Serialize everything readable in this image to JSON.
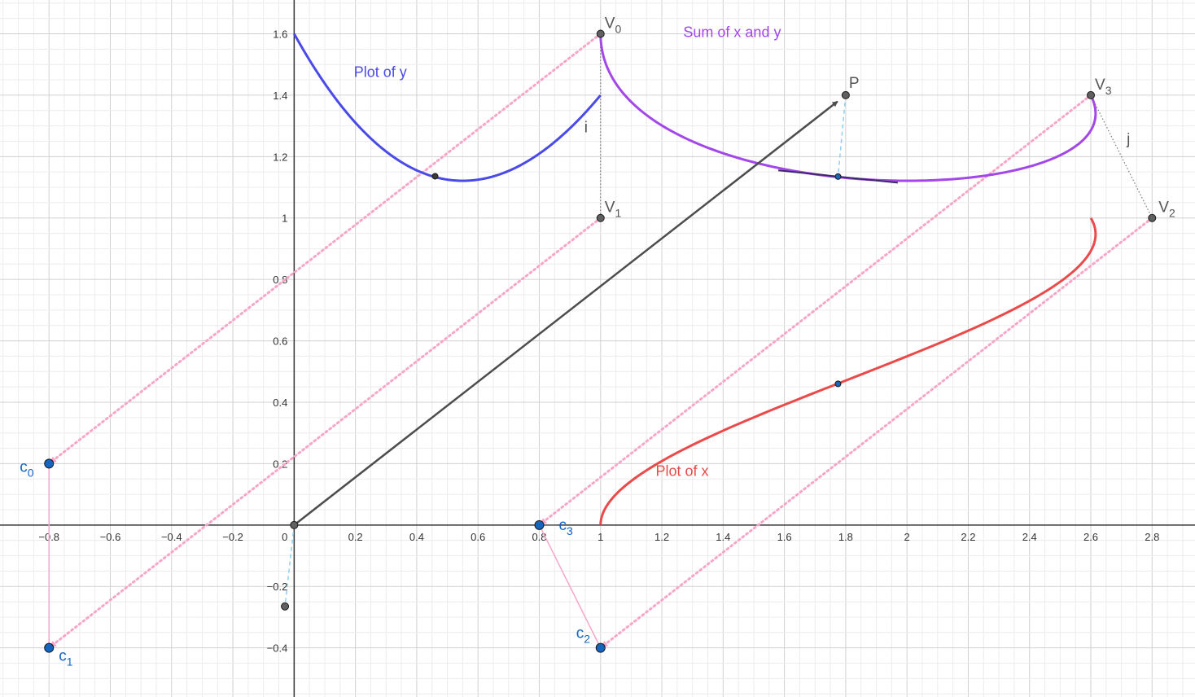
{
  "chart_data": {
    "type": "scatter",
    "xlim": [
      -0.96,
      2.94
    ],
    "ylim": [
      -0.56,
      1.71
    ],
    "grid": true,
    "minor_grid": true,
    "x_ticks": [
      -0.8,
      -0.6,
      -0.4,
      -0.2,
      0,
      0.2,
      0.4,
      0.6,
      0.8,
      1,
      1.2,
      1.4,
      1.6,
      1.8,
      2,
      2.2,
      2.4,
      2.6,
      2.8
    ],
    "y_ticks": [
      -0.4,
      -0.2,
      0.2,
      0.4,
      0.6,
      0.8,
      1,
      1.2,
      1.4,
      1.6
    ],
    "x_tick_labels": [
      "−0.8",
      "−0.6",
      "−0.4",
      "−0.2",
      "0",
      "0.2",
      "0.4",
      "0.6",
      "0.8",
      "1",
      "1.2",
      "1.4",
      "1.6",
      "1.8",
      "2",
      "2.2",
      "2.4",
      "2.6",
      "2.8"
    ],
    "y_tick_labels": [
      "−0.4",
      "−0.2",
      "0.2",
      "0.4",
      "0.6",
      "0.8",
      "1",
      "1.2",
      "1.4",
      "1.6"
    ],
    "control_points": [
      {
        "name": "V",
        "sub": "0",
        "x": 1.0,
        "y": 1.6
      },
      {
        "name": "V",
        "sub": "1",
        "x": 1.0,
        "y": 1.0
      },
      {
        "name": "V",
        "sub": "2",
        "x": 2.8,
        "y": 1.0
      },
      {
        "name": "V",
        "sub": "3",
        "x": 2.6,
        "y": 1.4
      }
    ],
    "coefficient_points": [
      {
        "name": "c",
        "sub": "0",
        "x": -0.8,
        "y": 0.2
      },
      {
        "name": "c",
        "sub": "1",
        "x": -0.8,
        "y": -0.4
      },
      {
        "name": "c",
        "sub": "2",
        "x": 1.0,
        "y": -0.4
      },
      {
        "name": "c",
        "sub": "3",
        "x": 0.8,
        "y": 0.0
      }
    ],
    "vector_P": {
      "label": "P",
      "from": [
        0,
        0
      ],
      "to": [
        1.8,
        1.4
      ]
    },
    "origin_point": {
      "x": 0,
      "y": 0
    },
    "extra_point": {
      "x": -0.03,
      "y": -0.265
    },
    "tangent_point": {
      "x": 1.775,
      "y": 1.135
    },
    "y_curve_point": {
      "x": 0.46,
      "y": 1.136
    },
    "x_curve_point": {
      "x": 1.775,
      "y": 0.46
    },
    "segment_labels": {
      "i": "i",
      "j": "j"
    },
    "curves": {
      "plot_of_y": {
        "label": "Plot of y",
        "color": "#4a4ae8"
      },
      "sum_of_x_and_y": {
        "label": "Sum of x and y",
        "color": "#a347e8"
      },
      "plot_of_x": {
        "label": "Plot of x",
        "color": "#ea4a4a"
      }
    },
    "colors": {
      "grid_minor": "#ececec",
      "grid_major": "#d0d0d0",
      "axis": "#333333",
      "pink": "#f7a6c8",
      "vector": "#4d4d4d",
      "point_dark": "#606060",
      "point_blue": "#1565c0",
      "label_blue": "#1565c0",
      "helper_blue": "#8fd0f0"
    }
  }
}
